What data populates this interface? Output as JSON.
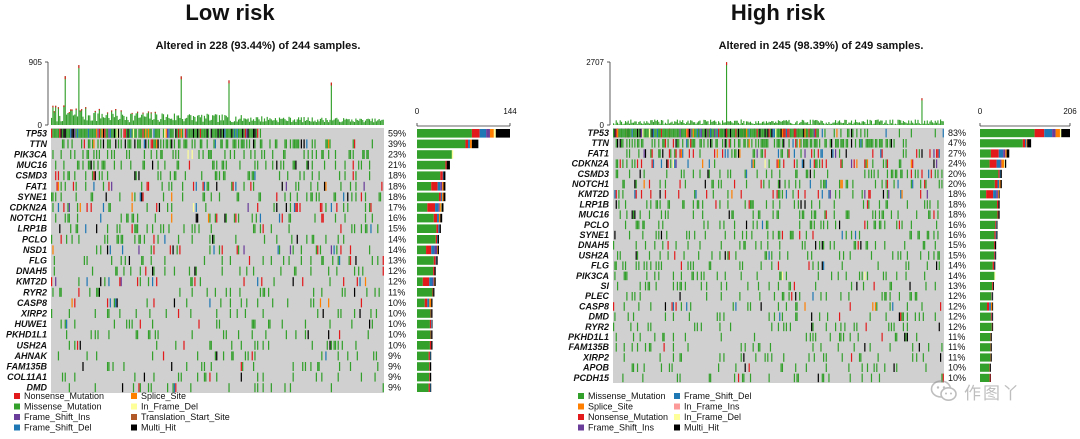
{
  "colors": {
    "Nonsense_Mutation": "#e31a1c",
    "Missense_Mutation": "#33a02c",
    "Frame_Shift_Ins": "#6a3d9a",
    "Frame_Shift_Del": "#1f78b4",
    "Splice_Site": "#ff7f00",
    "In_Frame_Del": "#ffff99",
    "In_Frame_Ins": "#fb9a99",
    "Translation_Start_Site": "#b15928",
    "Multi_Hit": "#000000",
    "background": "#d0d0d0"
  },
  "watermark": {
    "text": "作图丫",
    "icon": "wechat-icon"
  },
  "chart_data": [
    {
      "type": "heatmap",
      "subtype": "oncoplot",
      "title": "Low risk",
      "subtitle": "Altered in 228 (93.44%) of 244 samples.",
      "tmb_axis": {
        "max_label": "905",
        "min_label": "0",
        "ylim": [
          0,
          905
        ]
      },
      "gene_axis": {
        "min_label": "0",
        "max_label": "144",
        "xlim": [
          0,
          144
        ]
      },
      "n_samples": 244,
      "genes": [
        {
          "name": "TP53",
          "pct": "59%",
          "count": 144,
          "breakdown": {
            "Nonsense_Mutation": 12,
            "Missense_Mutation": 85,
            "Frame_Shift_Ins": 6,
            "Frame_Shift_Del": 10,
            "Splice_Site": 6,
            "In_Frame_Del": 3,
            "Multi_Hit": 22
          }
        },
        {
          "name": "TTN",
          "pct": "39%",
          "count": 95,
          "breakdown": {
            "Missense_Mutation": 75,
            "Nonsense_Mutation": 4,
            "Frame_Shift_Del": 3,
            "Splice_Site": 3,
            "Multi_Hit": 10
          }
        },
        {
          "name": "PIK3CA",
          "pct": "23%",
          "count": 56,
          "breakdown": {
            "Missense_Mutation": 54,
            "In_Frame_Del": 2
          }
        },
        {
          "name": "MUC16",
          "pct": "21%",
          "count": 51,
          "breakdown": {
            "Missense_Mutation": 44,
            "Nonsense_Mutation": 2,
            "Multi_Hit": 5
          }
        },
        {
          "name": "CSMD3",
          "pct": "18%",
          "count": 44,
          "breakdown": {
            "Missense_Mutation": 36,
            "Nonsense_Mutation": 4,
            "Frame_Shift_Del": 1,
            "Multi_Hit": 3
          }
        },
        {
          "name": "FAT1",
          "pct": "18%",
          "count": 44,
          "breakdown": {
            "Missense_Mutation": 22,
            "Nonsense_Mutation": 10,
            "Frame_Shift_Del": 4,
            "Frame_Shift_Ins": 3,
            "Splice_Site": 2,
            "Multi_Hit": 3
          }
        },
        {
          "name": "SYNE1",
          "pct": "18%",
          "count": 44,
          "breakdown": {
            "Missense_Mutation": 34,
            "Nonsense_Mutation": 3,
            "Frame_Shift_Del": 2,
            "Splice_Site": 2,
            "Multi_Hit": 3
          }
        },
        {
          "name": "CDKN2A",
          "pct": "17%",
          "count": 41,
          "breakdown": {
            "Missense_Mutation": 16,
            "Nonsense_Mutation": 12,
            "Frame_Shift_Del": 5,
            "Frame_Shift_Ins": 2,
            "Splice_Site": 2,
            "In_Frame_Del": 1,
            "Multi_Hit": 3
          }
        },
        {
          "name": "NOTCH1",
          "pct": "16%",
          "count": 39,
          "breakdown": {
            "Missense_Mutation": 26,
            "Nonsense_Mutation": 5,
            "Frame_Shift_Del": 3,
            "Splice_Site": 2,
            "Multi_Hit": 3
          }
        },
        {
          "name": "LRP1B",
          "pct": "15%",
          "count": 37,
          "breakdown": {
            "Missense_Mutation": 30,
            "Nonsense_Mutation": 3,
            "Frame_Shift_Del": 2,
            "Multi_Hit": 2
          }
        },
        {
          "name": "PCLO",
          "pct": "14%",
          "count": 34,
          "breakdown": {
            "Missense_Mutation": 29,
            "Nonsense_Mutation": 2,
            "Frame_Shift_Del": 1,
            "Multi_Hit": 2
          }
        },
        {
          "name": "NSD1",
          "pct": "14%",
          "count": 34,
          "breakdown": {
            "Missense_Mutation": 14,
            "Nonsense_Mutation": 8,
            "Frame_Shift_Del": 5,
            "Frame_Shift_Ins": 4,
            "Splice_Site": 1,
            "Multi_Hit": 2
          }
        },
        {
          "name": "FLG",
          "pct": "13%",
          "count": 32,
          "breakdown": {
            "Missense_Mutation": 26,
            "Nonsense_Mutation": 3,
            "Frame_Shift_Del": 1,
            "Multi_Hit": 2
          }
        },
        {
          "name": "DNAH5",
          "pct": "12%",
          "count": 29,
          "breakdown": {
            "Missense_Mutation": 25,
            "Nonsense_Mutation": 2,
            "Multi_Hit": 2
          }
        },
        {
          "name": "KMT2D",
          "pct": "12%",
          "count": 29,
          "breakdown": {
            "Missense_Mutation": 9,
            "Nonsense_Mutation": 10,
            "Frame_Shift_Del": 5,
            "Frame_Shift_Ins": 2,
            "Splice_Site": 1,
            "Multi_Hit": 2
          }
        },
        {
          "name": "RYR2",
          "pct": "11%",
          "count": 27,
          "breakdown": {
            "Missense_Mutation": 24,
            "Nonsense_Mutation": 1,
            "Multi_Hit": 2
          }
        },
        {
          "name": "CASP8",
          "pct": "10%",
          "count": 24,
          "breakdown": {
            "Missense_Mutation": 12,
            "Nonsense_Mutation": 4,
            "Frame_Shift_Del": 3,
            "Splice_Site": 3,
            "Multi_Hit": 2
          }
        },
        {
          "name": "XIRP2",
          "pct": "10%",
          "count": 24,
          "breakdown": {
            "Missense_Mutation": 21,
            "Nonsense_Mutation": 1,
            "Multi_Hit": 2
          }
        },
        {
          "name": "HUWE1",
          "pct": "10%",
          "count": 24,
          "breakdown": {
            "Missense_Mutation": 20,
            "Nonsense_Mutation": 2,
            "Frame_Shift_Del": 1,
            "Multi_Hit": 1
          }
        },
        {
          "name": "PKHD1L1",
          "pct": "10%",
          "count": 24,
          "breakdown": {
            "Missense_Mutation": 21,
            "Nonsense_Mutation": 1,
            "Multi_Hit": 2
          }
        },
        {
          "name": "USH2A",
          "pct": "10%",
          "count": 24,
          "breakdown": {
            "Missense_Mutation": 20,
            "Nonsense_Mutation": 2,
            "Multi_Hit": 2
          }
        },
        {
          "name": "AHNAK",
          "pct": "9%",
          "count": 22,
          "breakdown": {
            "Missense_Mutation": 18,
            "Nonsense_Mutation": 2,
            "Frame_Shift_Del": 1,
            "Multi_Hit": 1
          }
        },
        {
          "name": "FAM135B",
          "pct": "9%",
          "count": 22,
          "breakdown": {
            "Missense_Mutation": 19,
            "Nonsense_Mutation": 1,
            "Multi_Hit": 2
          }
        },
        {
          "name": "COL11A1",
          "pct": "9%",
          "count": 22,
          "breakdown": {
            "Missense_Mutation": 19,
            "Nonsense_Mutation": 1,
            "Multi_Hit": 2
          }
        },
        {
          "name": "DMD",
          "pct": "9%",
          "count": 22,
          "breakdown": {
            "Missense_Mutation": 18,
            "Nonsense_Mutation": 2,
            "Frame_Shift_Del": 1,
            "Multi_Hit": 1
          }
        }
      ],
      "legend": {
        "columns": 2,
        "items": [
          "Nonsense_Mutation",
          "Splice_Site",
          "Missense_Mutation",
          "In_Frame_Del",
          "Frame_Shift_Ins",
          "Translation_Start_Site",
          "Frame_Shift_Del",
          "Multi_Hit"
        ]
      }
    },
    {
      "type": "heatmap",
      "subtype": "oncoplot",
      "title": "High risk",
      "subtitle": "Altered in 245 (98.39%) of 249 samples.",
      "tmb_axis": {
        "max_label": "2707",
        "min_label": "0",
        "ylim": [
          0,
          2707
        ]
      },
      "gene_axis": {
        "min_label": "0",
        "max_label": "206",
        "xlim": [
          0,
          206
        ]
      },
      "n_samples": 249,
      "genes": [
        {
          "name": "TP53",
          "pct": "83%",
          "count": 206,
          "breakdown": {
            "Missense_Mutation": 125,
            "Nonsense_Mutation": 22,
            "Frame_Shift_Del": 18,
            "Frame_Shift_Ins": 8,
            "Splice_Site": 10,
            "In_Frame_Del": 3,
            "Multi_Hit": 20
          }
        },
        {
          "name": "TTN",
          "pct": "47%",
          "count": 117,
          "breakdown": {
            "Missense_Mutation": 98,
            "Nonsense_Mutation": 5,
            "Frame_Shift_Del": 3,
            "Splice_Site": 2,
            "Multi_Hit": 9
          }
        },
        {
          "name": "FAT1",
          "pct": "27%",
          "count": 67,
          "breakdown": {
            "Missense_Mutation": 25,
            "Nonsense_Mutation": 18,
            "Frame_Shift_Del": 10,
            "Frame_Shift_Ins": 5,
            "Splice_Site": 3,
            "Multi_Hit": 6
          }
        },
        {
          "name": "CDKN2A",
          "pct": "24%",
          "count": 60,
          "breakdown": {
            "Missense_Mutation": 22,
            "Nonsense_Mutation": 16,
            "Frame_Shift_Del": 8,
            "Frame_Shift_Ins": 3,
            "Splice_Site": 6,
            "In_Frame_Del": 2,
            "Multi_Hit": 3
          }
        },
        {
          "name": "CSMD3",
          "pct": "20%",
          "count": 50,
          "breakdown": {
            "Missense_Mutation": 42,
            "Nonsense_Mutation": 3,
            "Frame_Shift_Del": 2,
            "Multi_Hit": 3
          }
        },
        {
          "name": "NOTCH1",
          "pct": "20%",
          "count": 50,
          "breakdown": {
            "Missense_Mutation": 34,
            "Nonsense_Mutation": 6,
            "Frame_Shift_Del": 4,
            "Splice_Site": 3,
            "Multi_Hit": 3
          }
        },
        {
          "name": "KMT2D",
          "pct": "18%",
          "count": 45,
          "breakdown": {
            "Missense_Mutation": 14,
            "Nonsense_Mutation": 16,
            "Frame_Shift_Del": 7,
            "Frame_Shift_Ins": 4,
            "Splice_Site": 2,
            "Multi_Hit": 2
          }
        },
        {
          "name": "LRP1B",
          "pct": "18%",
          "count": 45,
          "breakdown": {
            "Missense_Mutation": 39,
            "Nonsense_Mutation": 3,
            "Multi_Hit": 3
          }
        },
        {
          "name": "MUC16",
          "pct": "18%",
          "count": 45,
          "breakdown": {
            "Missense_Mutation": 40,
            "Nonsense_Mutation": 2,
            "Multi_Hit": 3
          }
        },
        {
          "name": "PCLO",
          "pct": "16%",
          "count": 40,
          "breakdown": {
            "Missense_Mutation": 35,
            "Nonsense_Mutation": 2,
            "Frame_Shift_Del": 1,
            "Multi_Hit": 2
          }
        },
        {
          "name": "SYNE1",
          "pct": "16%",
          "count": 40,
          "breakdown": {
            "Missense_Mutation": 33,
            "Nonsense_Mutation": 3,
            "Frame_Shift_Del": 2,
            "Multi_Hit": 2
          }
        },
        {
          "name": "DNAH5",
          "pct": "15%",
          "count": 37,
          "breakdown": {
            "Missense_Mutation": 32,
            "Nonsense_Mutation": 2,
            "Multi_Hit": 3
          }
        },
        {
          "name": "USH2A",
          "pct": "15%",
          "count": 37,
          "breakdown": {
            "Missense_Mutation": 32,
            "Nonsense_Mutation": 2,
            "Frame_Shift_Del": 1,
            "Multi_Hit": 2
          }
        },
        {
          "name": "FLG",
          "pct": "14%",
          "count": 35,
          "breakdown": {
            "Missense_Mutation": 29,
            "Nonsense_Mutation": 3,
            "Frame_Shift_Del": 1,
            "Multi_Hit": 2
          }
        },
        {
          "name": "PIK3CA",
          "pct": "14%",
          "count": 35,
          "breakdown": {
            "Missense_Mutation": 33,
            "In_Frame_Del": 2
          }
        },
        {
          "name": "SI",
          "pct": "13%",
          "count": 32,
          "breakdown": {
            "Missense_Mutation": 28,
            "Nonsense_Mutation": 2,
            "Multi_Hit": 2
          }
        },
        {
          "name": "PLEC",
          "pct": "12%",
          "count": 30,
          "breakdown": {
            "Missense_Mutation": 26,
            "Nonsense_Mutation": 1,
            "Frame_Shift_Del": 1,
            "Multi_Hit": 2
          }
        },
        {
          "name": "CASP8",
          "pct": "12%",
          "count": 30,
          "breakdown": {
            "Missense_Mutation": 16,
            "Nonsense_Mutation": 5,
            "Frame_Shift_Del": 4,
            "Splice_Site": 3,
            "Multi_Hit": 2
          }
        },
        {
          "name": "DMD",
          "pct": "12%",
          "count": 30,
          "breakdown": {
            "Missense_Mutation": 25,
            "Nonsense_Mutation": 2,
            "Frame_Shift_Del": 1,
            "Multi_Hit": 2
          }
        },
        {
          "name": "RYR2",
          "pct": "12%",
          "count": 30,
          "breakdown": {
            "Missense_Mutation": 27,
            "Nonsense_Mutation": 1,
            "Multi_Hit": 2
          }
        },
        {
          "name": "PKHD1L1",
          "pct": "11%",
          "count": 27,
          "breakdown": {
            "Missense_Mutation": 24,
            "Nonsense_Mutation": 1,
            "Multi_Hit": 2
          }
        },
        {
          "name": "FAM135B",
          "pct": "11%",
          "count": 27,
          "breakdown": {
            "Missense_Mutation": 24,
            "Nonsense_Mutation": 1,
            "Multi_Hit": 2
          }
        },
        {
          "name": "XIRP2",
          "pct": "11%",
          "count": 27,
          "breakdown": {
            "Missense_Mutation": 24,
            "Nonsense_Mutation": 1,
            "Multi_Hit": 2
          }
        },
        {
          "name": "APOB",
          "pct": "10%",
          "count": 25,
          "breakdown": {
            "Missense_Mutation": 22,
            "Nonsense_Mutation": 1,
            "Multi_Hit": 2
          }
        },
        {
          "name": "PCDH15",
          "pct": "10%",
          "count": 25,
          "breakdown": {
            "Missense_Mutation": 22,
            "Nonsense_Mutation": 2,
            "Multi_Hit": 1
          }
        }
      ],
      "legend": {
        "columns": 2,
        "items": [
          "Missense_Mutation",
          "Frame_Shift_Del",
          "Splice_Site",
          "In_Frame_Ins",
          "Nonsense_Mutation",
          "In_Frame_Del",
          "Frame_Shift_Ins",
          "Multi_Hit"
        ]
      }
    }
  ]
}
